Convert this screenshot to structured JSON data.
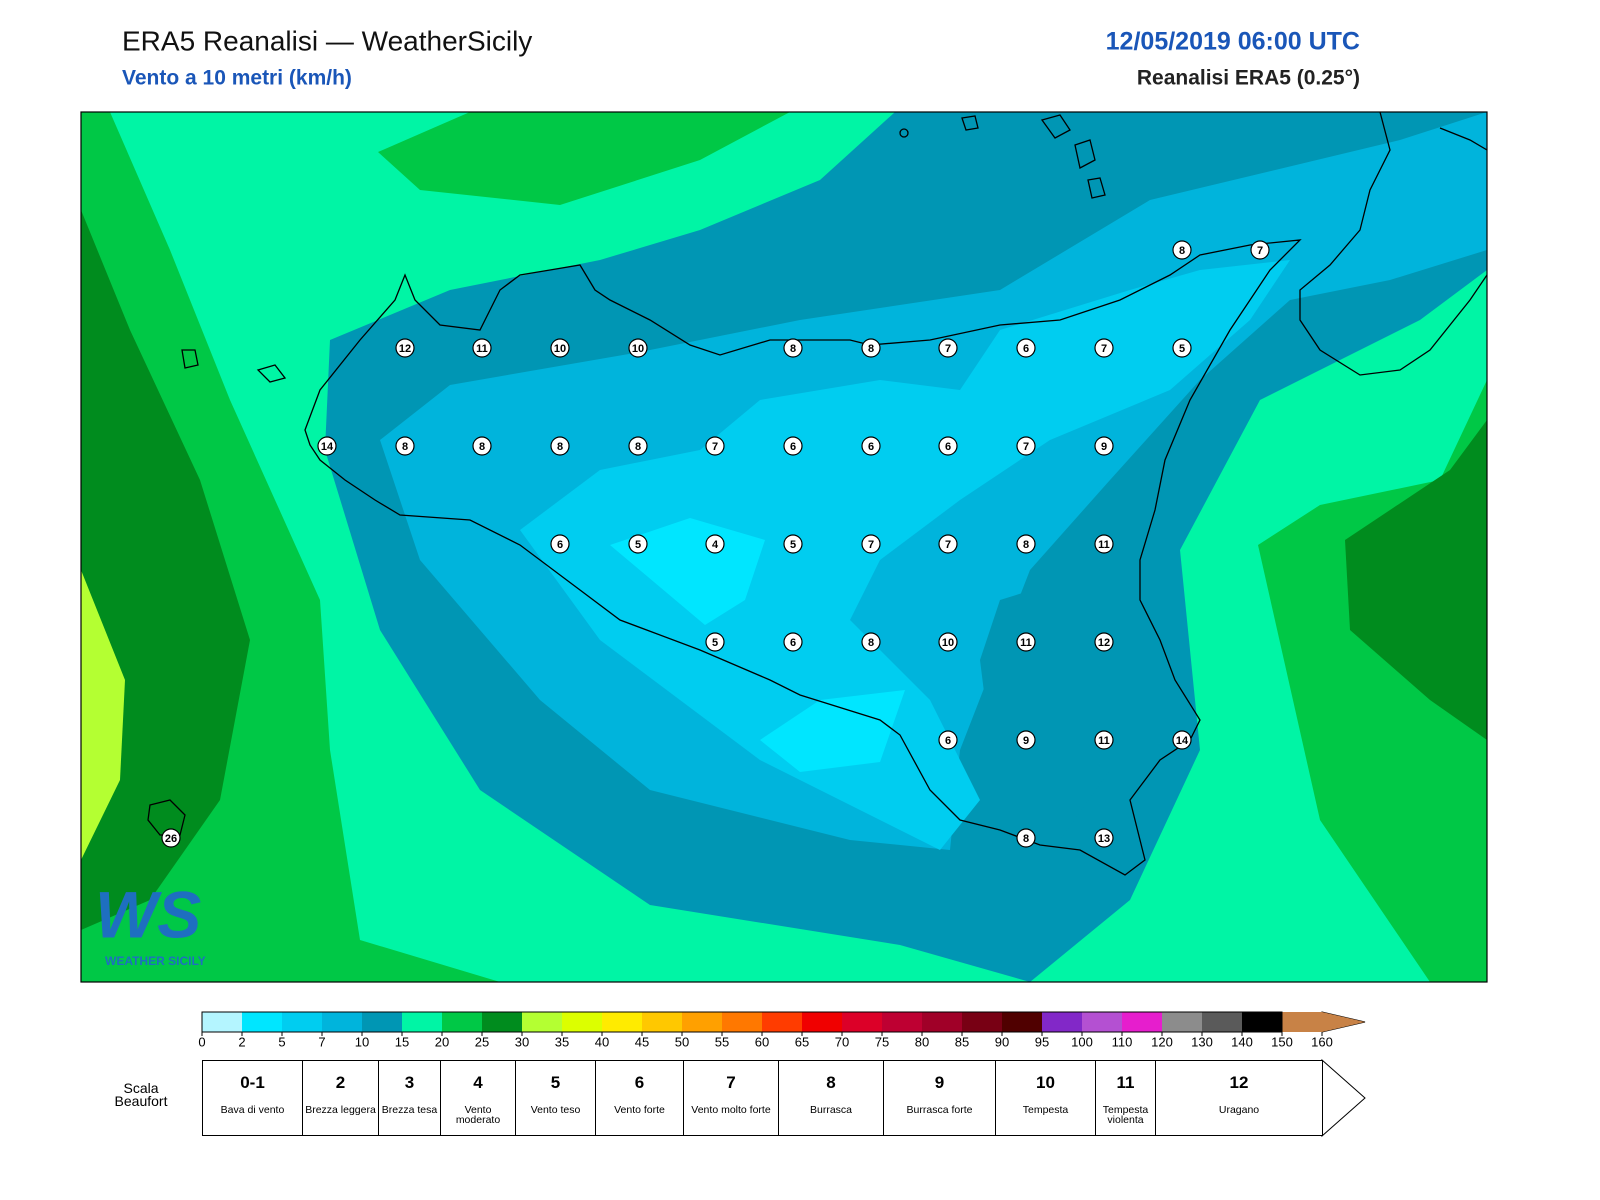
{
  "header": {
    "title": "ERA5 Reanalisi — WeatherSicily",
    "subtitle": "Vento a 10 metri (km/h)",
    "datetime": "12/05/2019 06:00 UTC",
    "model": "Reanalisi ERA5 (0.25°)"
  },
  "logo": {
    "mark": "WS",
    "text": "WEATHER SICILY"
  },
  "stations": {
    "values": [
      8,
      7,
      12,
      11,
      10,
      10,
      8,
      8,
      7,
      6,
      7,
      5,
      14,
      8,
      8,
      8,
      8,
      7,
      6,
      6,
      6,
      7,
      9,
      6,
      5,
      4,
      5,
      7,
      7,
      8,
      11,
      5,
      6,
      8,
      10,
      11,
      12,
      6,
      9,
      11,
      14,
      8,
      13,
      26
    ]
  },
  "colorbar": {
    "ticks": [
      0,
      2,
      5,
      7,
      10,
      15,
      20,
      25,
      30,
      35,
      40,
      45,
      50,
      55,
      60,
      65,
      70,
      75,
      80,
      85,
      90,
      95,
      100,
      110,
      120,
      130,
      140,
      150,
      160
    ],
    "colors": [
      "#b4f5ff",
      "#00e6ff",
      "#00cdf0",
      "#00b4dc",
      "#0096b4",
      "#00f5a5",
      "#00c846",
      "#008c1e",
      "#b4ff32",
      "#dcff00",
      "#ffeb00",
      "#ffc800",
      "#ffa000",
      "#ff7800",
      "#ff3c00",
      "#f00000",
      "#dc0028",
      "#be0032",
      "#a00028",
      "#780014",
      "#500000",
      "#8228c8",
      "#b450d2",
      "#e61ecd",
      "#8c8c8c",
      "#5a5a5a",
      "#000000",
      "#8c5028",
      "#c88246"
    ]
  },
  "beaufort": {
    "label": "Scala Beaufort",
    "entries": [
      {
        "force": "0-1",
        "desc": "Bava di vento"
      },
      {
        "force": "2",
        "desc": "Brezza leggera"
      },
      {
        "force": "3",
        "desc": "Brezza tesa"
      },
      {
        "force": "4",
        "desc": "Vento moderato"
      },
      {
        "force": "5",
        "desc": "Vento teso"
      },
      {
        "force": "6",
        "desc": "Vento forte"
      },
      {
        "force": "7",
        "desc": "Vento molto forte"
      },
      {
        "force": "8",
        "desc": "Burrasca"
      },
      {
        "force": "9",
        "desc": "Burrasca forte"
      },
      {
        "force": "10",
        "desc": "Tempesta"
      },
      {
        "force": "11",
        "desc": "Tempesta violenta"
      },
      {
        "force": "12",
        "desc": "Uragano"
      }
    ]
  }
}
